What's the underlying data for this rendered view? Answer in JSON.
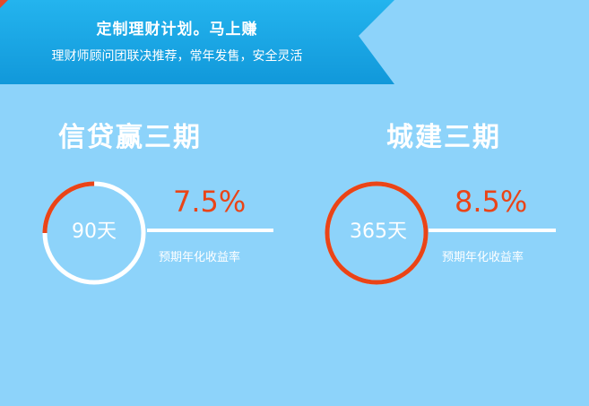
{
  "banner": {
    "title": "定制理财计划。马上赚",
    "subtitle": "理财师顾问团联决推荐，常年发售，安全灵活"
  },
  "products": [
    {
      "name": "信贷赢三期",
      "term": "90天",
      "rate": "7.5%",
      "rate_caption": "预期年化收益率",
      "progress": 0.25
    },
    {
      "name": "城建三期",
      "term": "365天",
      "rate": "8.5%",
      "rate_caption": "预期年化收益率",
      "progress": 1.0
    }
  ],
  "colors": {
    "background": "#8dd3fa",
    "banner": "#1aa7e6",
    "accent": "#ea4417",
    "white": "#ffffff"
  }
}
